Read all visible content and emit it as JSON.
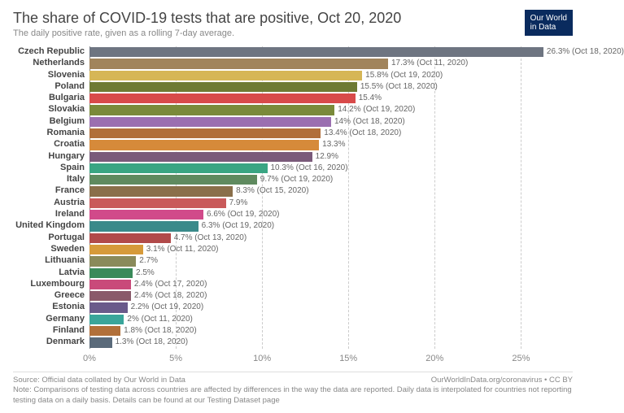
{
  "header": {
    "title": "The share of COVID-19 tests that are positive, Oct 20, 2020",
    "subtitle": "The daily positive rate, given as a rolling 7-day average.",
    "logo_line1": "Our World",
    "logo_line2": "in Data"
  },
  "chart": {
    "type": "bar-horizontal",
    "x_max": 28,
    "ticks": [
      0,
      5,
      10,
      15,
      20,
      25
    ],
    "tick_labels": [
      "0%",
      "5%",
      "10%",
      "15%",
      "20%",
      "25%"
    ],
    "label_fontsize": 11,
    "value_fontsize": 10,
    "grid_color_dashed": "#cccccc",
    "grid_color_solid": "#888888",
    "background_color": "#ffffff",
    "rows": [
      {
        "country": "Czech Republic",
        "value": 26.3,
        "label": "26.3% (Oct 18, 2020)",
        "color": "#6e7581"
      },
      {
        "country": "Netherlands",
        "value": 17.3,
        "label": "17.3% (Oct 11, 2020)",
        "color": "#a1845c"
      },
      {
        "country": "Slovenia",
        "value": 15.8,
        "label": "15.8% (Oct 19, 2020)",
        "color": "#d6b656"
      },
      {
        "country": "Poland",
        "value": 15.5,
        "label": "15.5% (Oct 18, 2020)",
        "color": "#6e7a33"
      },
      {
        "country": "Bulgaria",
        "value": 15.4,
        "label": "15.4%",
        "color": "#d84a4a"
      },
      {
        "country": "Slovakia",
        "value": 14.2,
        "label": "14.2% (Oct 19, 2020)",
        "color": "#7a8a3a"
      },
      {
        "country": "Belgium",
        "value": 14.0,
        "label": "14% (Oct 18, 2020)",
        "color": "#9b6fb0"
      },
      {
        "country": "Romania",
        "value": 13.4,
        "label": "13.4% (Oct 18, 2020)",
        "color": "#b16f3a"
      },
      {
        "country": "Croatia",
        "value": 13.3,
        "label": "13.3%",
        "color": "#d68a3a"
      },
      {
        "country": "Hungary",
        "value": 12.9,
        "label": "12.9%",
        "color": "#7a5a7a"
      },
      {
        "country": "Spain",
        "value": 10.3,
        "label": "10.3% (Oct 16, 2020)",
        "color": "#3aa583"
      },
      {
        "country": "Italy",
        "value": 9.7,
        "label": "9.7% (Oct 19, 2020)",
        "color": "#5f8a5f"
      },
      {
        "country": "France",
        "value": 8.3,
        "label": "8.3% (Oct 15, 2020)",
        "color": "#8a6f4a"
      },
      {
        "country": "Austria",
        "value": 7.9,
        "label": "7.9%",
        "color": "#c95a5a"
      },
      {
        "country": "Ireland",
        "value": 6.6,
        "label": "6.6% (Oct 19, 2020)",
        "color": "#d14a8a"
      },
      {
        "country": "United Kingdom",
        "value": 6.3,
        "label": "6.3% (Oct 19, 2020)",
        "color": "#3a8a8a"
      },
      {
        "country": "Portugal",
        "value": 4.7,
        "label": "4.7% (Oct 13, 2020)",
        "color": "#b14a4a"
      },
      {
        "country": "Sweden",
        "value": 3.1,
        "label": "3.1% (Oct 11, 2020)",
        "color": "#d69a3a"
      },
      {
        "country": "Lithuania",
        "value": 2.7,
        "label": "2.7%",
        "color": "#8a8a5a"
      },
      {
        "country": "Latvia",
        "value": 2.5,
        "label": "2.5%",
        "color": "#3a8a5a"
      },
      {
        "country": "Luxembourg",
        "value": 2.4,
        "label": "2.4% (Oct 17, 2020)",
        "color": "#c94a7a"
      },
      {
        "country": "Greece",
        "value": 2.4,
        "label": "2.4% (Oct 18, 2020)",
        "color": "#8a5a6a"
      },
      {
        "country": "Estonia",
        "value": 2.2,
        "label": "2.2% (Oct 19, 2020)",
        "color": "#6a5a8a"
      },
      {
        "country": "Germany",
        "value": 2.0,
        "label": "2% (Oct 11, 2020)",
        "color": "#3aa59a"
      },
      {
        "country": "Finland",
        "value": 1.8,
        "label": "1.8% (Oct 18, 2020)",
        "color": "#b1703a"
      },
      {
        "country": "Denmark",
        "value": 1.3,
        "label": "1.3% (Oct 18, 2020)",
        "color": "#5a6a7a"
      }
    ]
  },
  "footer": {
    "source": "Source: Official data collated by Our World in Data",
    "attribution": "OurWorldInData.org/coronavirus • CC BY",
    "note": "Note: Comparisons of testing data across countries are affected by differences in the way the data are reported. Daily data is interpolated for countries not reporting testing data on a daily basis. Details can be found at our Testing Dataset page"
  }
}
